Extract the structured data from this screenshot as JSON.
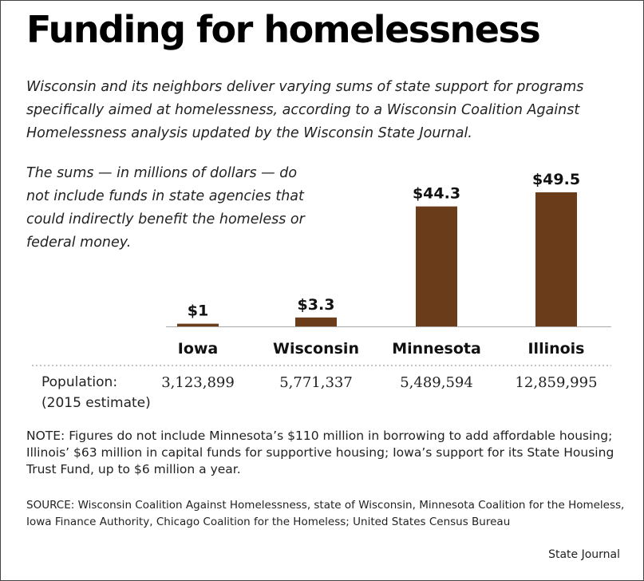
{
  "title": "Funding for homelessness",
  "subtitle": "Wisconsin and its neighbors deliver varying sums of state support for programs specifically aimed at homelessness, according to a Wisconsin Coalition Against Homelessness analysis updated by the Wisconsin State Journal.",
  "chart_note": "The sums — in millions of dollars — do not include funds in state agencies that could indirectly benefit the homeless or federal money.",
  "chart_data": {
    "type": "bar",
    "categories": [
      "Iowa",
      "Wisconsin",
      "Minnesota",
      "Illinois"
    ],
    "values": [
      1,
      3.3,
      44.3,
      49.5
    ],
    "value_labels": [
      "$1",
      "$3.3",
      "$44.3",
      "$49.5"
    ],
    "title": "",
    "xlabel": "",
    "ylabel": "",
    "ylim": [
      0,
      49.5
    ],
    "grid": false,
    "bar_color": "#6b3c1a"
  },
  "population": {
    "label": "Population:",
    "sublabel": "(2015 estimate)",
    "values": [
      "3,123,899",
      "5,771,337",
      "5,489,594",
      "12,859,995"
    ]
  },
  "note": "NOTE: Figures do not include Minnesota’s $110 million in borrowing to add affordable housing; Illinois’ $63 million in capital funds for supportive housing; Iowa’s support for its State Housing Trust Fund, up to $6 million a year.",
  "source": "SOURCE: Wisconsin Coalition Against Homelessness, state of Wisconsin, Minnesota Coalition for the Homeless, Iowa Finance Authority, Chicago Coalition for the Homeless; United States Census Bureau",
  "credit": "State Journal"
}
